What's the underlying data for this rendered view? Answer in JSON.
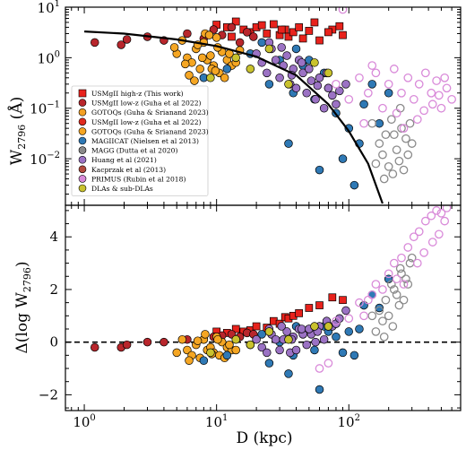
{
  "chart_data": [
    {
      "type": "scatter",
      "panel": "top",
      "ylabel_main": "W",
      "ylabel_sub": "2796",
      "ylabel_unit": "(Å)",
      "yscale": "log",
      "xscale": "log",
      "ylim": [
        0.0012,
        10
      ],
      "yticks": [
        {
          "value": 0.01,
          "base": "10",
          "exp": "−2"
        },
        {
          "value": 0.1,
          "base": "10",
          "exp": "−1"
        },
        {
          "value": 1,
          "base": "10",
          "exp": "0"
        },
        {
          "value": 10,
          "base": "10",
          "exp": "1"
        }
      ],
      "legend": {
        "placement": "lower-left",
        "entries": [
          {
            "label": "USMgII high-z (This work)",
            "color": "#e8221c",
            "marker": "square",
            "filled": true
          },
          {
            "label": "USMgII low-z (Guha et al 2022)",
            "color": "#b8262c",
            "marker": "circle",
            "filled": true
          },
          {
            "label": "GOTOQs (Guha & Srianand 2023)",
            "color": "#f2a024",
            "marker": "circle",
            "filled": true
          },
          {
            "label": "USMgII low-z (Guha et al 2022)",
            "color": "#e02a1e",
            "marker": "circle",
            "filled": true
          },
          {
            "label": "GOTOQs (Guha & Srianand 2023)",
            "color": "#f5a623",
            "marker": "circle",
            "filled": true
          },
          {
            "label": "MAGIICAT (Nielsen et al 2013)",
            "color": "#2f79b5",
            "marker": "circle",
            "filled": true
          },
          {
            "label": "MAGG (Dutta et al 2020)",
            "color": "#8a8a8a",
            "marker": "circle",
            "filled": true
          },
          {
            "label": "Huang et al (2021)",
            "color": "#9b72c4",
            "marker": "circle",
            "filled": true
          },
          {
            "label": "Kacprzak et al (2013)",
            "color": "#b34a3d",
            "marker": "circle",
            "filled": true
          },
          {
            "label": "PRIMUS (Rubin et al 2018)",
            "color": "#d98ad9",
            "marker": "circle",
            "filled": true
          },
          {
            "label": "DLAs & sub-DLAs",
            "color": "#c9c22e",
            "marker": "circle",
            "filled": true
          }
        ]
      },
      "model_curve": {
        "x": [
          1,
          2,
          5,
          10,
          20,
          40,
          70,
          100,
          140,
          180
        ],
        "y": [
          3.3,
          3.0,
          2.3,
          1.7,
          1.05,
          0.45,
          0.12,
          0.035,
          0.008,
          0.0013
        ]
      },
      "series": [
        {
          "name": "USMgII high-z (This work)",
          "color": "#e8221c",
          "marker": "square",
          "x": [
            10,
            12,
            14,
            16,
            18,
            20,
            24,
            27,
            30,
            33,
            35,
            38,
            42,
            50,
            60,
            75,
            90,
            13,
            22,
            31,
            45,
            55,
            70,
            85
          ],
          "y": [
            4.5,
            4.0,
            5.2,
            3.6,
            3.2,
            4.0,
            3.0,
            4.6,
            2.8,
            3.6,
            2.6,
            3.2,
            4.0,
            3.4,
            2.2,
            3.6,
            2.8,
            2.6,
            4.4,
            3.6,
            2.4,
            5.0,
            3.2,
            4.2
          ]
        },
        {
          "name": "USMgII low-z (Guha et al 2022)",
          "color": "#b8262c",
          "marker": "circle",
          "x": [
            1.2,
            1.9,
            2.1,
            3.0,
            4.0,
            6.0,
            8.0,
            9.5,
            11,
            13,
            15,
            17,
            19
          ],
          "y": [
            2.0,
            1.8,
            2.3,
            2.6,
            2.2,
            3.0,
            2.4,
            3.6,
            2.8,
            4.0,
            2.0,
            3.2,
            2.6
          ]
        },
        {
          "name": "GOTOQs (Guha & Srianand 2023)",
          "color": "#f5a623",
          "marker": "circle",
          "x": [
            5,
            6,
            6.5,
            7,
            7.5,
            8,
            8.5,
            9,
            9.5,
            10,
            10.5,
            11,
            12,
            13,
            5.5,
            6.2,
            7.2,
            8.2,
            9.2,
            10.2,
            11.5,
            12.5,
            14,
            6.8,
            7.8,
            8.8,
            9.8,
            4.8,
            5.8,
            15
          ],
          "y": [
            1.2,
            1.0,
            0.8,
            1.5,
            0.6,
            2.0,
            0.9,
            1.1,
            0.7,
            2.5,
            0.5,
            1.3,
            0.9,
            0.7,
            2.2,
            0.45,
            1.8,
            3.0,
            0.6,
            1.6,
            0.4,
            1.2,
            0.8,
            0.35,
            1.0,
            2.8,
            0.55,
            1.6,
            0.75,
            1.4
          ]
        },
        {
          "name": "MAGIICAT (Nielsen et al 2013)",
          "color": "#2f79b5",
          "marker": "circle",
          "x": [
            8,
            12,
            18,
            25,
            30,
            38,
            45,
            55,
            65,
            80,
            100,
            120,
            150,
            200,
            60,
            40,
            90,
            130,
            170,
            22,
            35,
            50,
            70,
            110
          ],
          "y": [
            0.4,
            0.6,
            1.2,
            0.3,
            0.9,
            0.2,
            0.7,
            0.15,
            0.5,
            0.08,
            0.04,
            0.02,
            0.3,
            0.2,
            0.006,
            1.5,
            0.01,
            0.12,
            0.05,
            2.0,
            0.02,
            0.9,
            0.25,
            0.003
          ]
        },
        {
          "name": "MAGG (Dutta et al 2020)",
          "color": "#8a8a8a",
          "marker": "circle-open",
          "x": [
            150,
            170,
            190,
            210,
            230,
            250,
            270,
            290,
            160,
            180,
            200,
            220,
            240,
            260,
            280,
            300,
            185,
            215,
            245
          ],
          "y": [
            0.05,
            0.02,
            0.03,
            0.06,
            0.015,
            0.04,
            0.025,
            0.05,
            0.008,
            0.012,
            0.007,
            0.03,
            0.009,
            0.006,
            0.012,
            0.02,
            0.004,
            0.005,
            0.1
          ]
        },
        {
          "name": "Huang et al (2021)",
          "color": "#9b72c4",
          "marker": "circle",
          "x": [
            20,
            22,
            24,
            26,
            28,
            30,
            32,
            34,
            36,
            38,
            40,
            42,
            45,
            48,
            52,
            56,
            60,
            65,
            70,
            75,
            80,
            25,
            31,
            37,
            44,
            50,
            58,
            68,
            85,
            95
          ],
          "y": [
            1.2,
            0.8,
            0.5,
            1.5,
            0.9,
            0.4,
            0.7,
            1.1,
            0.3,
            0.6,
            0.25,
            0.9,
            0.5,
            0.2,
            0.35,
            0.15,
            0.4,
            0.1,
            0.25,
            0.18,
            0.12,
            2.0,
            1.6,
            0.45,
            0.8,
            0.6,
            0.28,
            0.5,
            0.22,
            0.3
          ]
        },
        {
          "name": "PRIMUS (Rubin et al 2018)",
          "color": "#d98ad9",
          "marker": "circle-open",
          "x": [
            80,
            100,
            120,
            140,
            160,
            180,
            200,
            220,
            250,
            280,
            310,
            340,
            380,
            420,
            460,
            500,
            550,
            600,
            130,
            230,
            330,
            430,
            530,
            90,
            150,
            260,
            370,
            480
          ],
          "y": [
            0.3,
            0.15,
            0.4,
            0.2,
            0.5,
            0.1,
            0.3,
            0.6,
            0.2,
            0.4,
            0.15,
            0.3,
            0.5,
            0.2,
            0.35,
            0.1,
            0.25,
            0.15,
            0.05,
            0.08,
            0.06,
            0.12,
            0.4,
            9.0,
            0.7,
            0.04,
            0.09,
            0.18
          ]
        },
        {
          "name": "DLAs & sub-DLAs",
          "color": "#c9c22e",
          "marker": "circle",
          "x": [
            9,
            14,
            18,
            25,
            35,
            55,
            70
          ],
          "y": [
            0.4,
            1.0,
            0.6,
            1.5,
            0.3,
            0.8,
            0.5
          ]
        }
      ]
    },
    {
      "type": "scatter",
      "panel": "bottom",
      "ylabel_pre": "Δ(log W",
      "ylabel_sub": "2796",
      "ylabel_post": ")",
      "xlabel": "D (kpc)",
      "xscale": "log",
      "xlim": [
        0.72,
        700
      ],
      "xticks": [
        {
          "value": 1,
          "base": "10",
          "exp": "0"
        },
        {
          "value": 10,
          "base": "10",
          "exp": "1"
        },
        {
          "value": 100,
          "base": "10",
          "exp": "2"
        }
      ],
      "ylim": [
        -2.6,
        5.2
      ],
      "yticks": [
        -2,
        0,
        2,
        4
      ],
      "zero_line": true,
      "series": [
        {
          "name": "USMgII high-z (This work)",
          "color": "#e8221c",
          "marker": "square",
          "x": [
            10,
            12,
            14,
            16,
            18,
            20,
            24,
            27,
            30,
            33,
            35,
            38,
            42,
            50,
            60,
            75,
            90
          ],
          "y": [
            0.4,
            0.35,
            0.5,
            0.4,
            0.45,
            0.6,
            0.55,
            0.8,
            0.7,
            0.95,
            0.9,
            1.0,
            1.1,
            1.3,
            1.4,
            1.7,
            1.6
          ]
        },
        {
          "name": "USMgII low-z (Guha et al 2022)",
          "color": "#b8262c",
          "marker": "circle",
          "x": [
            1.2,
            1.9,
            2.1,
            3.0,
            4.0,
            6.0,
            8.0,
            9.5,
            11,
            13,
            15,
            17,
            19
          ],
          "y": [
            -0.2,
            -0.2,
            -0.1,
            0.0,
            0.0,
            0.1,
            0.1,
            0.2,
            0.25,
            0.3,
            0.2,
            0.35,
            0.3
          ]
        },
        {
          "name": "GOTOQs (Guha & Srianand 2023)",
          "color": "#f5a623",
          "marker": "circle",
          "x": [
            5,
            6,
            6.5,
            7,
            7.5,
            8,
            8.5,
            9,
            9.5,
            10,
            10.5,
            11,
            12,
            13,
            5.5,
            6.2,
            7.2,
            8.2,
            9.2,
            10.2,
            11.5,
            12.5,
            14
          ],
          "y": [
            -0.4,
            -0.3,
            -0.5,
            -0.1,
            -0.6,
            0.1,
            -0.3,
            -0.2,
            -0.4,
            0.2,
            -0.5,
            0.0,
            -0.2,
            -0.3,
            0.1,
            -0.7,
            0.05,
            0.3,
            -0.45,
            0.1,
            -0.6,
            -0.1,
            -0.3
          ]
        },
        {
          "name": "MAGIICAT (Nielsen et al 2013)",
          "color": "#2f79b5",
          "marker": "circle",
          "x": [
            8,
            12,
            18,
            25,
            30,
            38,
            45,
            55,
            65,
            80,
            100,
            120,
            150,
            200,
            40,
            90,
            130,
            170,
            22,
            50,
            70,
            110,
            60,
            35
          ],
          "y": [
            -0.7,
            -0.5,
            -0.1,
            -0.8,
            0.0,
            -0.5,
            0.3,
            -0.3,
            0.6,
            0.2,
            0.4,
            0.5,
            1.8,
            2.4,
            0.6,
            -0.4,
            1.4,
            1.3,
            0.3,
            0.5,
            0.4,
            -0.5,
            -1.8,
            -1.2
          ]
        },
        {
          "name": "MAGG (Dutta et al 2020)",
          "color": "#8a8a8a",
          "marker": "circle-open",
          "x": [
            150,
            170,
            190,
            210,
            230,
            250,
            270,
            290,
            160,
            180,
            200,
            220,
            240,
            260,
            280,
            300,
            185,
            215,
            245
          ],
          "y": [
            1.0,
            1.2,
            1.6,
            2.2,
            1.8,
            2.6,
            2.4,
            3.0,
            0.4,
            0.8,
            1.0,
            2.0,
            1.4,
            1.6,
            2.2,
            3.2,
            0.2,
            0.6,
            2.8
          ]
        },
        {
          "name": "Huang et al (2021)",
          "color": "#9b72c4",
          "marker": "circle",
          "x": [
            20,
            22,
            24,
            26,
            28,
            30,
            32,
            34,
            36,
            38,
            40,
            42,
            45,
            48,
            52,
            56,
            60,
            65,
            70,
            75,
            80,
            25,
            31,
            37,
            44,
            50,
            58,
            68,
            85,
            95
          ],
          "y": [
            0.1,
            -0.2,
            -0.4,
            0.3,
            0.1,
            -0.3,
            0.1,
            0.4,
            -0.4,
            0.2,
            -0.3,
            0.5,
            0.3,
            -0.1,
            0.3,
            0.0,
            0.6,
            0.1,
            0.6,
            0.6,
            0.7,
            0.5,
            0.6,
            0.1,
            0.5,
            0.5,
            0.4,
            0.8,
            0.9,
            1.2
          ]
        },
        {
          "name": "PRIMUS (Rubin et al 2018)",
          "color": "#d98ad9",
          "marker": "circle-open",
          "x": [
            80,
            100,
            120,
            140,
            160,
            180,
            200,
            220,
            250,
            280,
            310,
            340,
            380,
            420,
            460,
            500,
            550,
            130,
            230,
            330,
            430,
            530,
            150,
            260,
            370,
            480,
            60,
            70
          ],
          "y": [
            0.8,
            0.9,
            1.5,
            1.6,
            2.2,
            2.0,
            2.6,
            3.0,
            3.2,
            3.6,
            4.0,
            4.2,
            4.6,
            4.8,
            5.0,
            4.9,
            5.1,
            1.0,
            2.4,
            3.0,
            3.8,
            4.6,
            1.8,
            2.2,
            3.4,
            4.1,
            -1.0,
            -0.8
          ]
        },
        {
          "name": "DLAs & sub-DLAs",
          "color": "#c9c22e",
          "marker": "circle",
          "x": [
            9,
            14,
            18,
            25,
            35,
            55,
            70
          ],
          "y": [
            -0.4,
            0.1,
            -0.1,
            0.4,
            0.1,
            0.6,
            0.6
          ]
        }
      ]
    }
  ]
}
